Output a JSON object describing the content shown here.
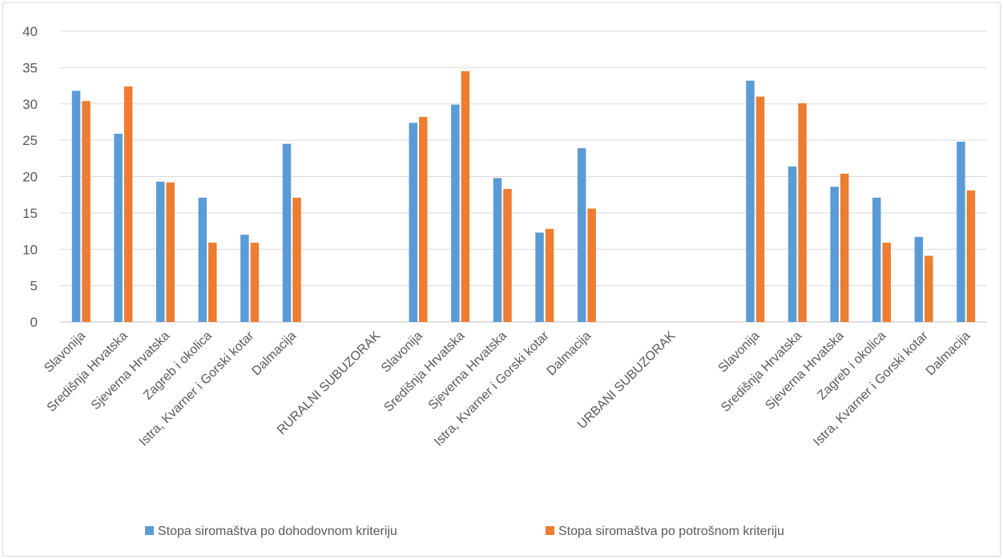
{
  "chart_data": {
    "type": "bar",
    "categories": [
      "Slavonija",
      "Središnja Hrvatska",
      "Sjeverna Hrvatska",
      "Zagreb i okolica",
      "Istra, Kvarner i Gorski kotar",
      "Dalmacija",
      "",
      "RURALNI SUBUZORAK",
      "Slavonija",
      "Središnja Hrvatska",
      "Sjeverna Hrvatska",
      "Istra, Kvarner i Gorski kotar",
      "Dalmacija",
      "",
      "URBANI SUBUZORAK",
      "",
      "Slavonija",
      "Središnja Hrvatska",
      "Sjeverna Hrvatska",
      "Zagreb i okolica",
      "Istra, Kvarner i Gorski kotar",
      "Dalmacija"
    ],
    "series": [
      {
        "name": "Stopa siromaštva po dohodovnom kriteriju",
        "color": "#5b9bd5",
        "values": [
          31.8,
          25.9,
          19.3,
          17.1,
          12.0,
          24.5,
          null,
          null,
          27.4,
          29.9,
          19.8,
          12.3,
          23.9,
          null,
          null,
          null,
          33.2,
          21.4,
          18.6,
          17.1,
          11.7,
          24.8
        ]
      },
      {
        "name": "Stopa siromaštva po potrošnom kriteriju",
        "color": "#ed7d31",
        "values": [
          30.4,
          32.4,
          19.2,
          10.9,
          10.9,
          17.1,
          null,
          null,
          28.2,
          34.5,
          18.3,
          12.8,
          15.6,
          null,
          null,
          null,
          31.0,
          30.1,
          20.4,
          10.9,
          9.1,
          18.1
        ]
      }
    ],
    "ylim": [
      0,
      40
    ],
    "yticks": [
      "0",
      "5",
      "10",
      "15",
      "20",
      "25",
      "30",
      "35",
      "40"
    ],
    "grid": true,
    "legend": "bottom"
  }
}
